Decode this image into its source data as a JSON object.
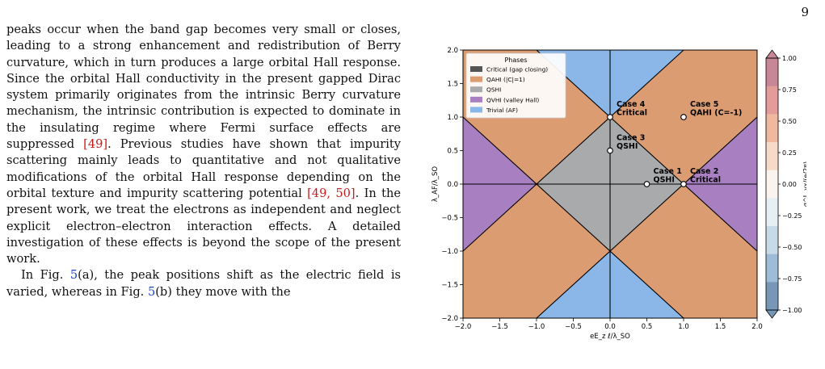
{
  "page_number": "9",
  "text": {
    "p1": [
      {
        "t": "peaks occur when the band gap becomes very small or closes, leading to a strong enhancement and redistribution of Berry curvature, which in turn produces a large orbital Hall response. Since the orbital Hall conductivity in the present gapped Dirac system primarily originates from the intrinsic Berry curvature mechanism, the intrinsic contribution is expected to dominate in the insulating regime where Fermi surface effects are suppressed "
      },
      {
        "t": "[49]",
        "c": "cite"
      },
      {
        "t": ". Previous studies have shown that impurity scattering mainly leads to quantitative and not qualitative modifications of the orbital Hall response depending on the orbital texture and impurity scattering potential  "
      },
      {
        "t": "[49, 50]",
        "c": "cite"
      },
      {
        "t": ". In the present work, we treat the electrons as independent and neglect explicit electron–electron interaction effects. A detailed investigation of these effects is beyond the scope of the present work."
      }
    ],
    "p2": [
      {
        "t": "In Fig. "
      },
      {
        "t": "5",
        "c": "link"
      },
      {
        "t": "(a), the peak positions shift as the electric field is varied, whereas in Fig. "
      },
      {
        "t": "5",
        "c": "link"
      },
      {
        "t": "(b) they move with the"
      }
    ]
  },
  "chart_data": {
    "type": "phase-diagram",
    "xlabel": "eE_z ℓ/λ_SO",
    "ylabel": "λ_AF/λ_SO",
    "xlim": [
      -2.0,
      2.0
    ],
    "ylim": [
      -2.0,
      2.0
    ],
    "xticks": [
      "−2.0",
      "−1.5",
      "−1.0",
      "−0.5",
      "0.0",
      "0.5",
      "1.0",
      "1.5",
      "2.0"
    ],
    "yticks": [
      "−2.0",
      "−1.5",
      "−1.0",
      "−0.5",
      "0.0",
      "0.5",
      "1.0",
      "1.5",
      "2.0"
    ],
    "tick_values": [
      -2.0,
      -1.5,
      -1.0,
      -0.5,
      0.0,
      0.5,
      1.0,
      1.5,
      2.0
    ],
    "legend_title": "Phases",
    "legend_position": "upper-left",
    "colors": {
      "critical": "#555555",
      "qahi": "#dc9c72",
      "qshi": "#a8aaac",
      "qvhi": "#a87fc1",
      "trivial": "#8ab6e8"
    },
    "legend": [
      {
        "label": "Critical (gap closing)",
        "color": "#555555"
      },
      {
        "label": "QAHI (|C|=1)",
        "color": "#dc9c72"
      },
      {
        "label": "QSHI",
        "color": "#a8aaac"
      },
      {
        "label": "QVHI (valley Hall)",
        "color": "#a87fc1"
      },
      {
        "label": "Trivial (AF)",
        "color": "#8ab6e8"
      }
    ],
    "points": [
      {
        "x": 0.5,
        "y": 0.0,
        "line1": "Case 1",
        "line2": "QSHI",
        "anchor": "right-above",
        "shift": 0.06
      },
      {
        "x": 1.0,
        "y": 0.0,
        "line1": "Case 2",
        "line2": "Critical",
        "anchor": "right-above",
        "shift": 0.08
      },
      {
        "x": 0.0,
        "y": 0.5,
        "line1": "Case 3",
        "line2": "QSHI",
        "anchor": "right-above",
        "shift": 0.08
      },
      {
        "x": 0.0,
        "y": 1.0,
        "line1": "Case 4",
        "line2": "Critical",
        "anchor": "right-above",
        "shift": 0.08
      },
      {
        "x": 1.0,
        "y": 1.0,
        "line1": "Case 5",
        "line2": "QAHI (C=-1)",
        "anchor": "right-above",
        "shift": 0.08
      }
    ],
    "colorbar": {
      "label": "σ^L_yx/(e/2π)",
      "ticks": [
        1.0,
        0.75,
        0.5,
        0.25,
        0.0,
        -0.25,
        -0.5,
        -0.75,
        -1.0
      ],
      "tick_labels": [
        "1.00",
        "0.75",
        "0.50",
        "0.25",
        "0.00",
        "−0.25",
        "−0.50",
        "−0.75",
        "−1.00"
      ],
      "bands": [
        "#c88796",
        "#e39c9a",
        "#f0b89e",
        "#f8dac8",
        "#faf3ee",
        "#e6eff4",
        "#c7dae7",
        "#9ebcd7",
        "#7896b6"
      ]
    }
  }
}
